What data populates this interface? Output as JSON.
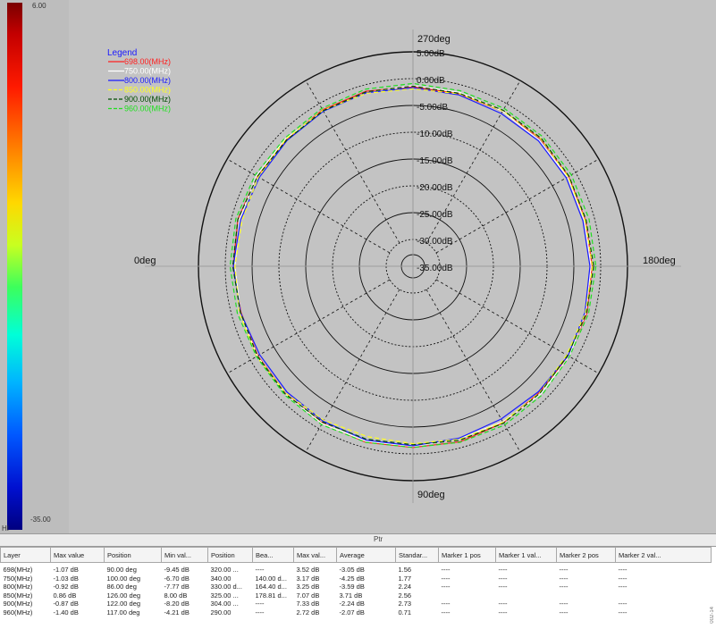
{
  "colorbar": {
    "max_label": "6.00",
    "min_label": "-35.00",
    "footer_label": "HI"
  },
  "status_bar": {
    "text": "Ptr"
  },
  "side_code": "002-14",
  "chart_data": {
    "type": "polar",
    "title": "",
    "radial_axis": {
      "labels": [
        "5.00dB",
        "0.00dB",
        "-5.00dB",
        "-10.00dB",
        "-15.00dB",
        "-20.00dB",
        "-25.00dB",
        "-30.00dB",
        "-35.00dB"
      ],
      "range_db": [
        -35,
        5
      ]
    },
    "angle_labels": {
      "top": "270deg",
      "left": "0deg",
      "right": "180deg",
      "bottom": "90deg"
    },
    "legend": {
      "title": "Legend",
      "placement": "top-left"
    },
    "series": [
      {
        "name": "698.00(MHz)",
        "color": "#ff2020",
        "style": "solid",
        "values_db": [
          -1.6,
          -1.4,
          -1.5,
          -1.7,
          -1.3,
          -1.1,
          -1.2,
          -1.0,
          -1.2,
          -1.4,
          -1.6,
          -1.8,
          -1.5,
          -1.2,
          -1.4,
          -1.6,
          -1.3,
          -1.2,
          -1.5,
          -1.7,
          -1.6,
          -1.4,
          -1.5,
          -1.7
        ]
      },
      {
        "name": "750.00(MHz)",
        "color": "#ffffff",
        "style": "solid",
        "values_db": [
          -1.8,
          -1.6,
          -1.4,
          -1.3,
          -1.5,
          -1.7,
          -1.4,
          -1.2,
          -1.1,
          -1.3,
          -1.5,
          -1.7,
          -1.8,
          -1.5,
          -1.3,
          -1.4,
          -1.6,
          -1.5,
          -1.3,
          -1.4,
          -1.6,
          -1.8,
          -1.7,
          -1.9
        ]
      },
      {
        "name": "800.00(MHz)",
        "color": "#1a1aff",
        "style": "solid",
        "values_db": [
          -2.0,
          -1.8,
          -1.6,
          -1.9,
          -2.1,
          -1.8,
          -1.5,
          -1.4,
          -1.6,
          -1.8,
          -2.0,
          -1.7,
          -1.5,
          -1.7,
          -1.9,
          -1.8,
          -1.6,
          -1.5,
          -1.7,
          -1.9,
          -2.1,
          -1.9,
          -2.0,
          -2.2
        ]
      },
      {
        "name": "850.00(MHz)",
        "color": "#ffff20",
        "style": "dashed",
        "values_db": [
          -1.5,
          -1.7,
          -1.9,
          -1.6,
          -1.4,
          -1.6,
          -1.9,
          -2.1,
          -1.8,
          -1.5,
          -1.3,
          -1.5,
          -1.8,
          -2.0,
          -1.7,
          -1.5,
          -1.4,
          -1.6,
          -1.9,
          -1.7,
          -1.5,
          -1.3,
          -1.6,
          -1.8
        ]
      },
      {
        "name": "900.00(MHz)",
        "color": "#004d00",
        "style": "dashed",
        "values_db": [
          -1.3,
          -1.5,
          -1.7,
          -1.5,
          -1.2,
          -1.4,
          -1.7,
          -1.6,
          -1.4,
          -1.3,
          -1.5,
          -1.7,
          -1.4,
          -1.2,
          -1.5,
          -1.7,
          -1.5,
          -1.3,
          -1.4,
          -1.6,
          -1.4,
          -1.2,
          -1.4,
          -1.6
        ]
      },
      {
        "name": "960.00(MHz)",
        "color": "#20e020",
        "style": "dashed",
        "values_db": [
          -0.9,
          -1.1,
          -1.3,
          -1.0,
          -0.8,
          -1.0,
          -1.2,
          -1.0,
          -0.9,
          -1.1,
          -1.3,
          -1.1,
          -0.9,
          -0.8,
          -1.0,
          -1.2,
          -1.0,
          -0.8,
          -0.9,
          -1.1,
          -1.0,
          -0.8,
          -0.9,
          -1.0
        ]
      }
    ]
  },
  "table": {
    "headers": [
      "Layer",
      "Max value",
      "Position",
      "Min val...",
      "Position",
      "Bea...",
      "Max val...",
      "Average",
      "Standar...",
      "Marker 1 pos",
      "Marker 1 val...",
      "Marker 2 pos",
      "Marker 2 val..."
    ],
    "rows": [
      [
        "698(MHz)",
        "-1.07 dB",
        "90.00 deg",
        "-9.45 dB",
        "320.00 ...",
        "----",
        "3.52 dB",
        "-3.05 dB",
        "1.56",
        "----",
        "----",
        "----",
        "----"
      ],
      [
        "750(MHz)",
        "-1.03 dB",
        "100.00 deg",
        "-6.70 dB",
        "340.00",
        "140.00 d...",
        "3.17 dB",
        "-4.25 dB",
        "1.77",
        "----",
        "----",
        "----",
        "----"
      ],
      [
        "800(MHz)",
        "-0.92 dB",
        "86.00 deg",
        "-7.77 dB",
        "330.00 d...",
        "164.40 d...",
        "3.25 dB",
        "-3.59 dB",
        "2.24",
        "----",
        "----",
        "----",
        "----"
      ],
      [
        "850(MHz)",
        "0.86 dB",
        "126.00 deg",
        "8.00 dB",
        "325.00 ...",
        "178.81 d...",
        "7.07 dB",
        "3.71 dB",
        "2.56",
        "",
        "",
        "",
        ""
      ],
      [
        "900(MHz)",
        "-0.87 dB",
        "122.00 deg",
        "-8.20 dB",
        "304.00 ...",
        "----",
        "7.33 dB",
        "-2.24 dB",
        "2.73",
        "----",
        "----",
        "----",
        "----"
      ],
      [
        "960(MHz)",
        "-1.40 dB",
        "117.00 deg",
        "-4.21 dB",
        "290.00",
        "----",
        "2.72 dB",
        "-2.07 dB",
        "0.71",
        "----",
        "----",
        "----",
        "----"
      ]
    ]
  }
}
